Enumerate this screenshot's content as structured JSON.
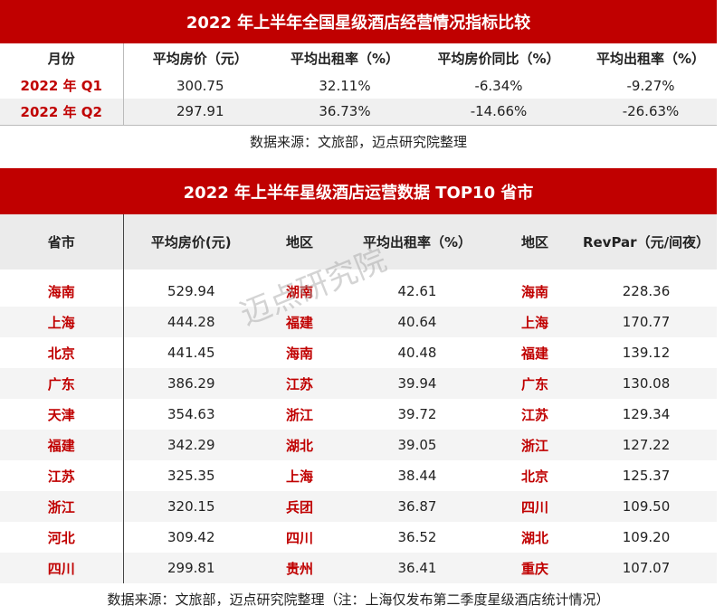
{
  "table1": {
    "title": "2022 年上半年全国星级酒店经营情况指标比较",
    "headers": [
      "月份",
      "平均房价（元）",
      "平均出租率（%）",
      "平均房价同比（%）",
      "平均出租率（%）"
    ],
    "rows": [
      [
        "2022 年 Q1",
        "300.75",
        "32.11%",
        "-6.34%",
        "-9.27%"
      ],
      [
        "2022 年 Q2",
        "297.91",
        "36.73%",
        "-14.66%",
        "-26.63%"
      ]
    ],
    "source": "数据来源：文旅部，迈点研究院整理"
  },
  "table2": {
    "title": "2022 年上半年星级酒店运营数据 TOP10 省市",
    "headers": [
      "省市",
      "平均房价(元)",
      "地区",
      "平均出租率（%）",
      "地区",
      "RevPar（元/间夜）"
    ],
    "rows": [
      [
        "海南",
        "529.94",
        "湖南",
        "42.61",
        "海南",
        "228.36"
      ],
      [
        "上海",
        "444.28",
        "福建",
        "40.64",
        "上海",
        "170.77"
      ],
      [
        "北京",
        "441.45",
        "海南",
        "40.48",
        "福建",
        "139.12"
      ],
      [
        "广东",
        "386.29",
        "江苏",
        "39.94",
        "广东",
        "130.08"
      ],
      [
        "天津",
        "354.63",
        "浙江",
        "39.72",
        "江苏",
        "129.34"
      ],
      [
        "福建",
        "342.29",
        "湖北",
        "39.05",
        "浙江",
        "127.22"
      ],
      [
        "江苏",
        "325.35",
        "上海",
        "38.44",
        "北京",
        "125.37"
      ],
      [
        "浙江",
        "320.15",
        "兵团",
        "36.87",
        "四川",
        "109.50"
      ],
      [
        "河北",
        "309.42",
        "四川",
        "36.52",
        "湖北",
        "109.20"
      ],
      [
        "四川",
        "299.81",
        "贵州",
        "36.41",
        "重庆",
        "107.07"
      ]
    ],
    "source": "数据来源：文旅部，迈点研究院整理（注：上海仅发布第二季度星级酒店统计情况）"
  },
  "watermark": "迈点研究院",
  "colors": {
    "accent": "#c00000"
  }
}
